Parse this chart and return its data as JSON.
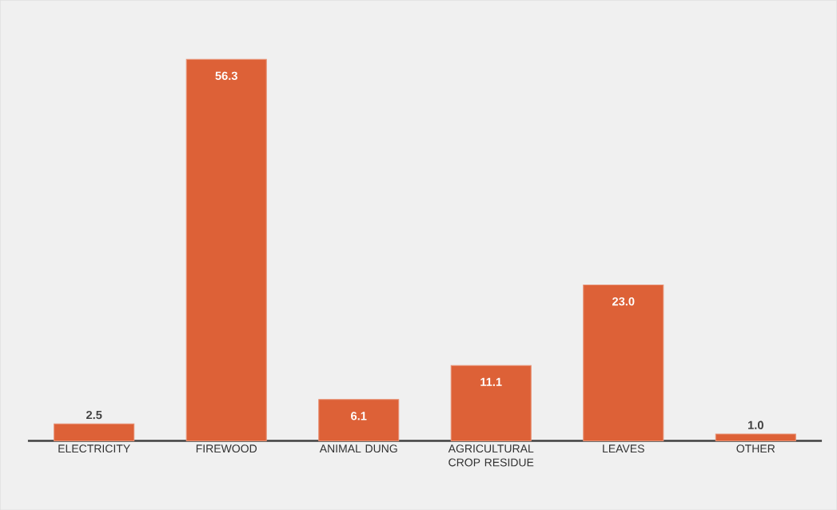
{
  "chart_data": {
    "type": "bar",
    "categories": [
      "ELECTRICITY",
      "FIREWOOD",
      "ANIMAL DUNG",
      "AGRICULTURAL CROP RESIDUE",
      "LEAVES",
      "OTHER"
    ],
    "values": [
      2.5,
      56.3,
      6.1,
      11.1,
      23.0,
      1.0
    ],
    "value_labels": [
      "2.5",
      "56.3",
      "6.1",
      "11.1",
      "23.0",
      "1.0"
    ],
    "color": "#dd6137",
    "tick_labels": "x"
  }
}
